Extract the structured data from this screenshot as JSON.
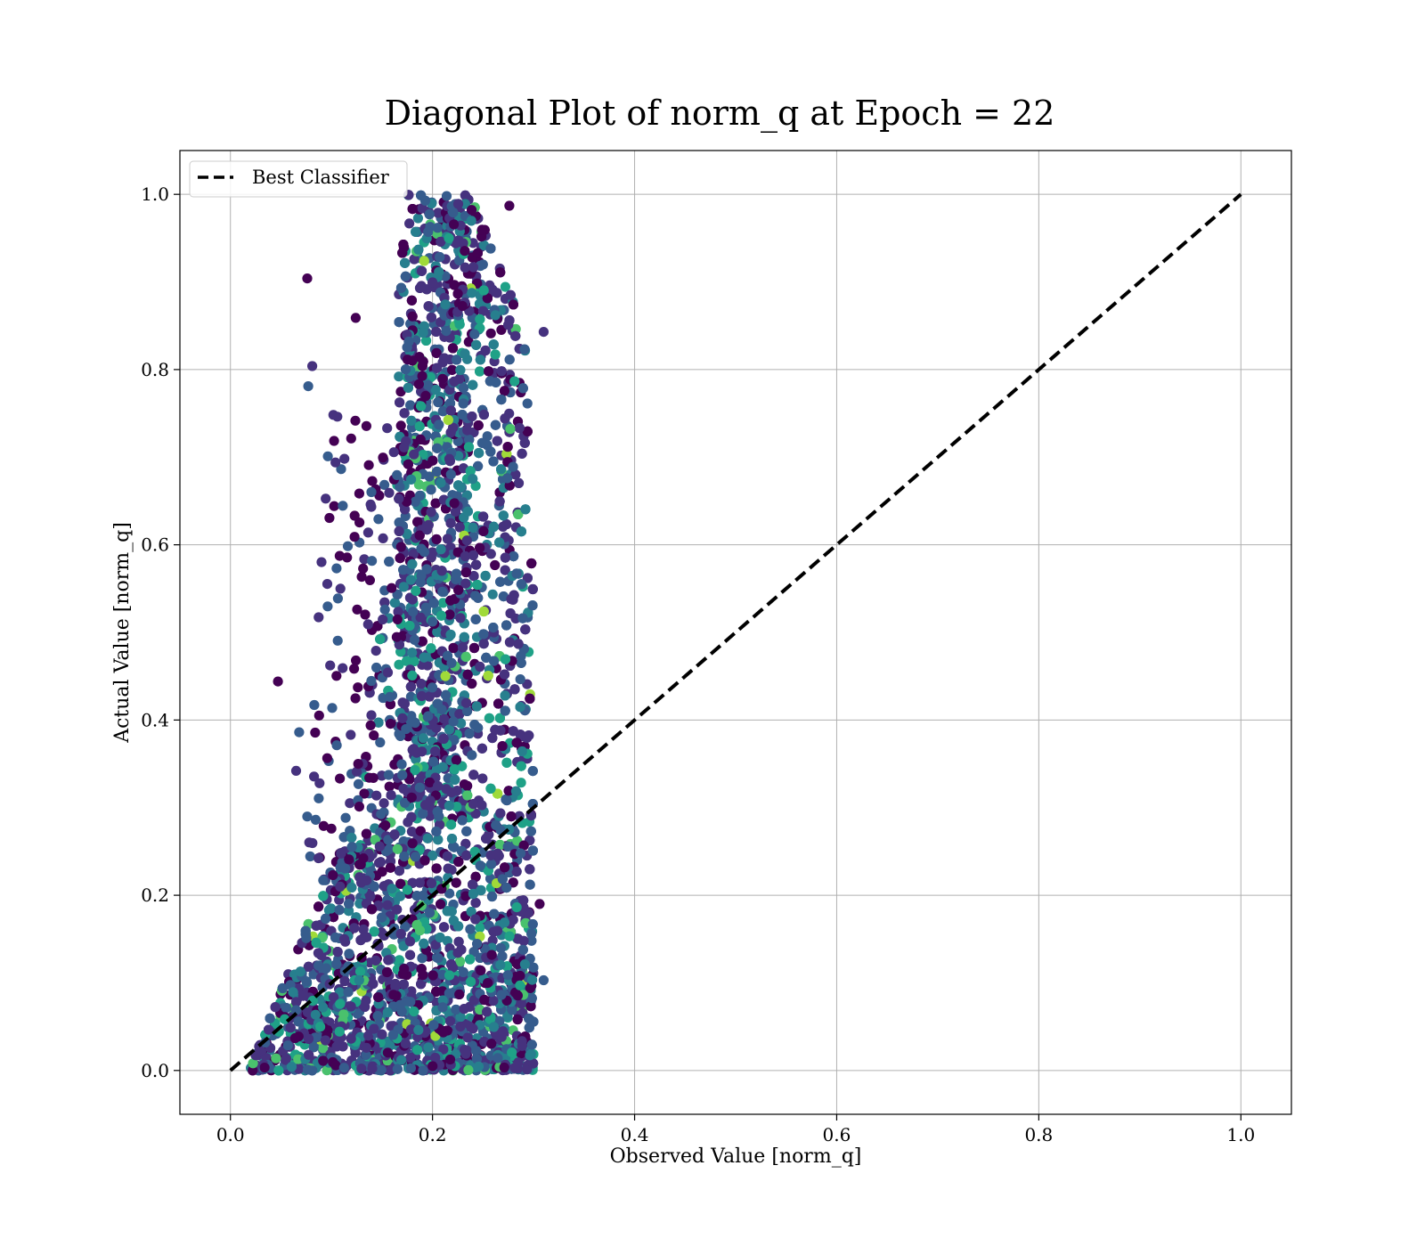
{
  "chart_data": {
    "type": "scatter",
    "title": "Diagonal Plot of norm_q at Epoch = 22",
    "xlabel": "Observed Value [norm_q]",
    "ylabel": "Actual Value [norm_q]",
    "xlim": [
      -0.05,
      1.05
    ],
    "ylim": [
      -0.05,
      1.05
    ],
    "xticks": [
      "0.0",
      "0.2",
      "0.4",
      "0.6",
      "0.8",
      "1.0"
    ],
    "yticks": [
      "0.0",
      "0.2",
      "0.4",
      "0.6",
      "0.8",
      "1.0"
    ],
    "grid": true,
    "legend": {
      "placement": "top-left",
      "entries": [
        "Best Classifier"
      ]
    },
    "reference_line": {
      "name": "Best Classifier",
      "x": [
        0.0,
        1.0
      ],
      "y": [
        0.0,
        1.0
      ],
      "style": "dashed",
      "color": "#000000"
    },
    "colormap": "viridis",
    "colors": [
      "#440154",
      "#46327e",
      "#365c8d",
      "#277f8e",
      "#1fa187",
      "#4ac16d",
      "#a0da39"
    ],
    "scatter_summary": {
      "x_range": [
        0.02,
        0.31
      ],
      "y_range": [
        0.0,
        1.0
      ],
      "dense_core_x": [
        0.15,
        0.3
      ]
    },
    "outliers": [
      {
        "x": 0.076,
        "y": 0.904
      },
      {
        "x": 0.081,
        "y": 0.804
      },
      {
        "x": 0.077,
        "y": 0.781
      },
      {
        "x": 0.047,
        "y": 0.444
      },
      {
        "x": 0.065,
        "y": 0.342
      },
      {
        "x": 0.068,
        "y": 0.386
      },
      {
        "x": 0.124,
        "y": 0.859
      },
      {
        "x": 0.104,
        "y": 0.694
      },
      {
        "x": 0.214,
        "y": 0.998
      },
      {
        "x": 0.276,
        "y": 0.987
      },
      {
        "x": 0.31,
        "y": 0.843
      },
      {
        "x": 0.31,
        "y": 0.103
      },
      {
        "x": 0.306,
        "y": 0.19
      },
      {
        "x": 0.087,
        "y": 0.134
      }
    ]
  }
}
